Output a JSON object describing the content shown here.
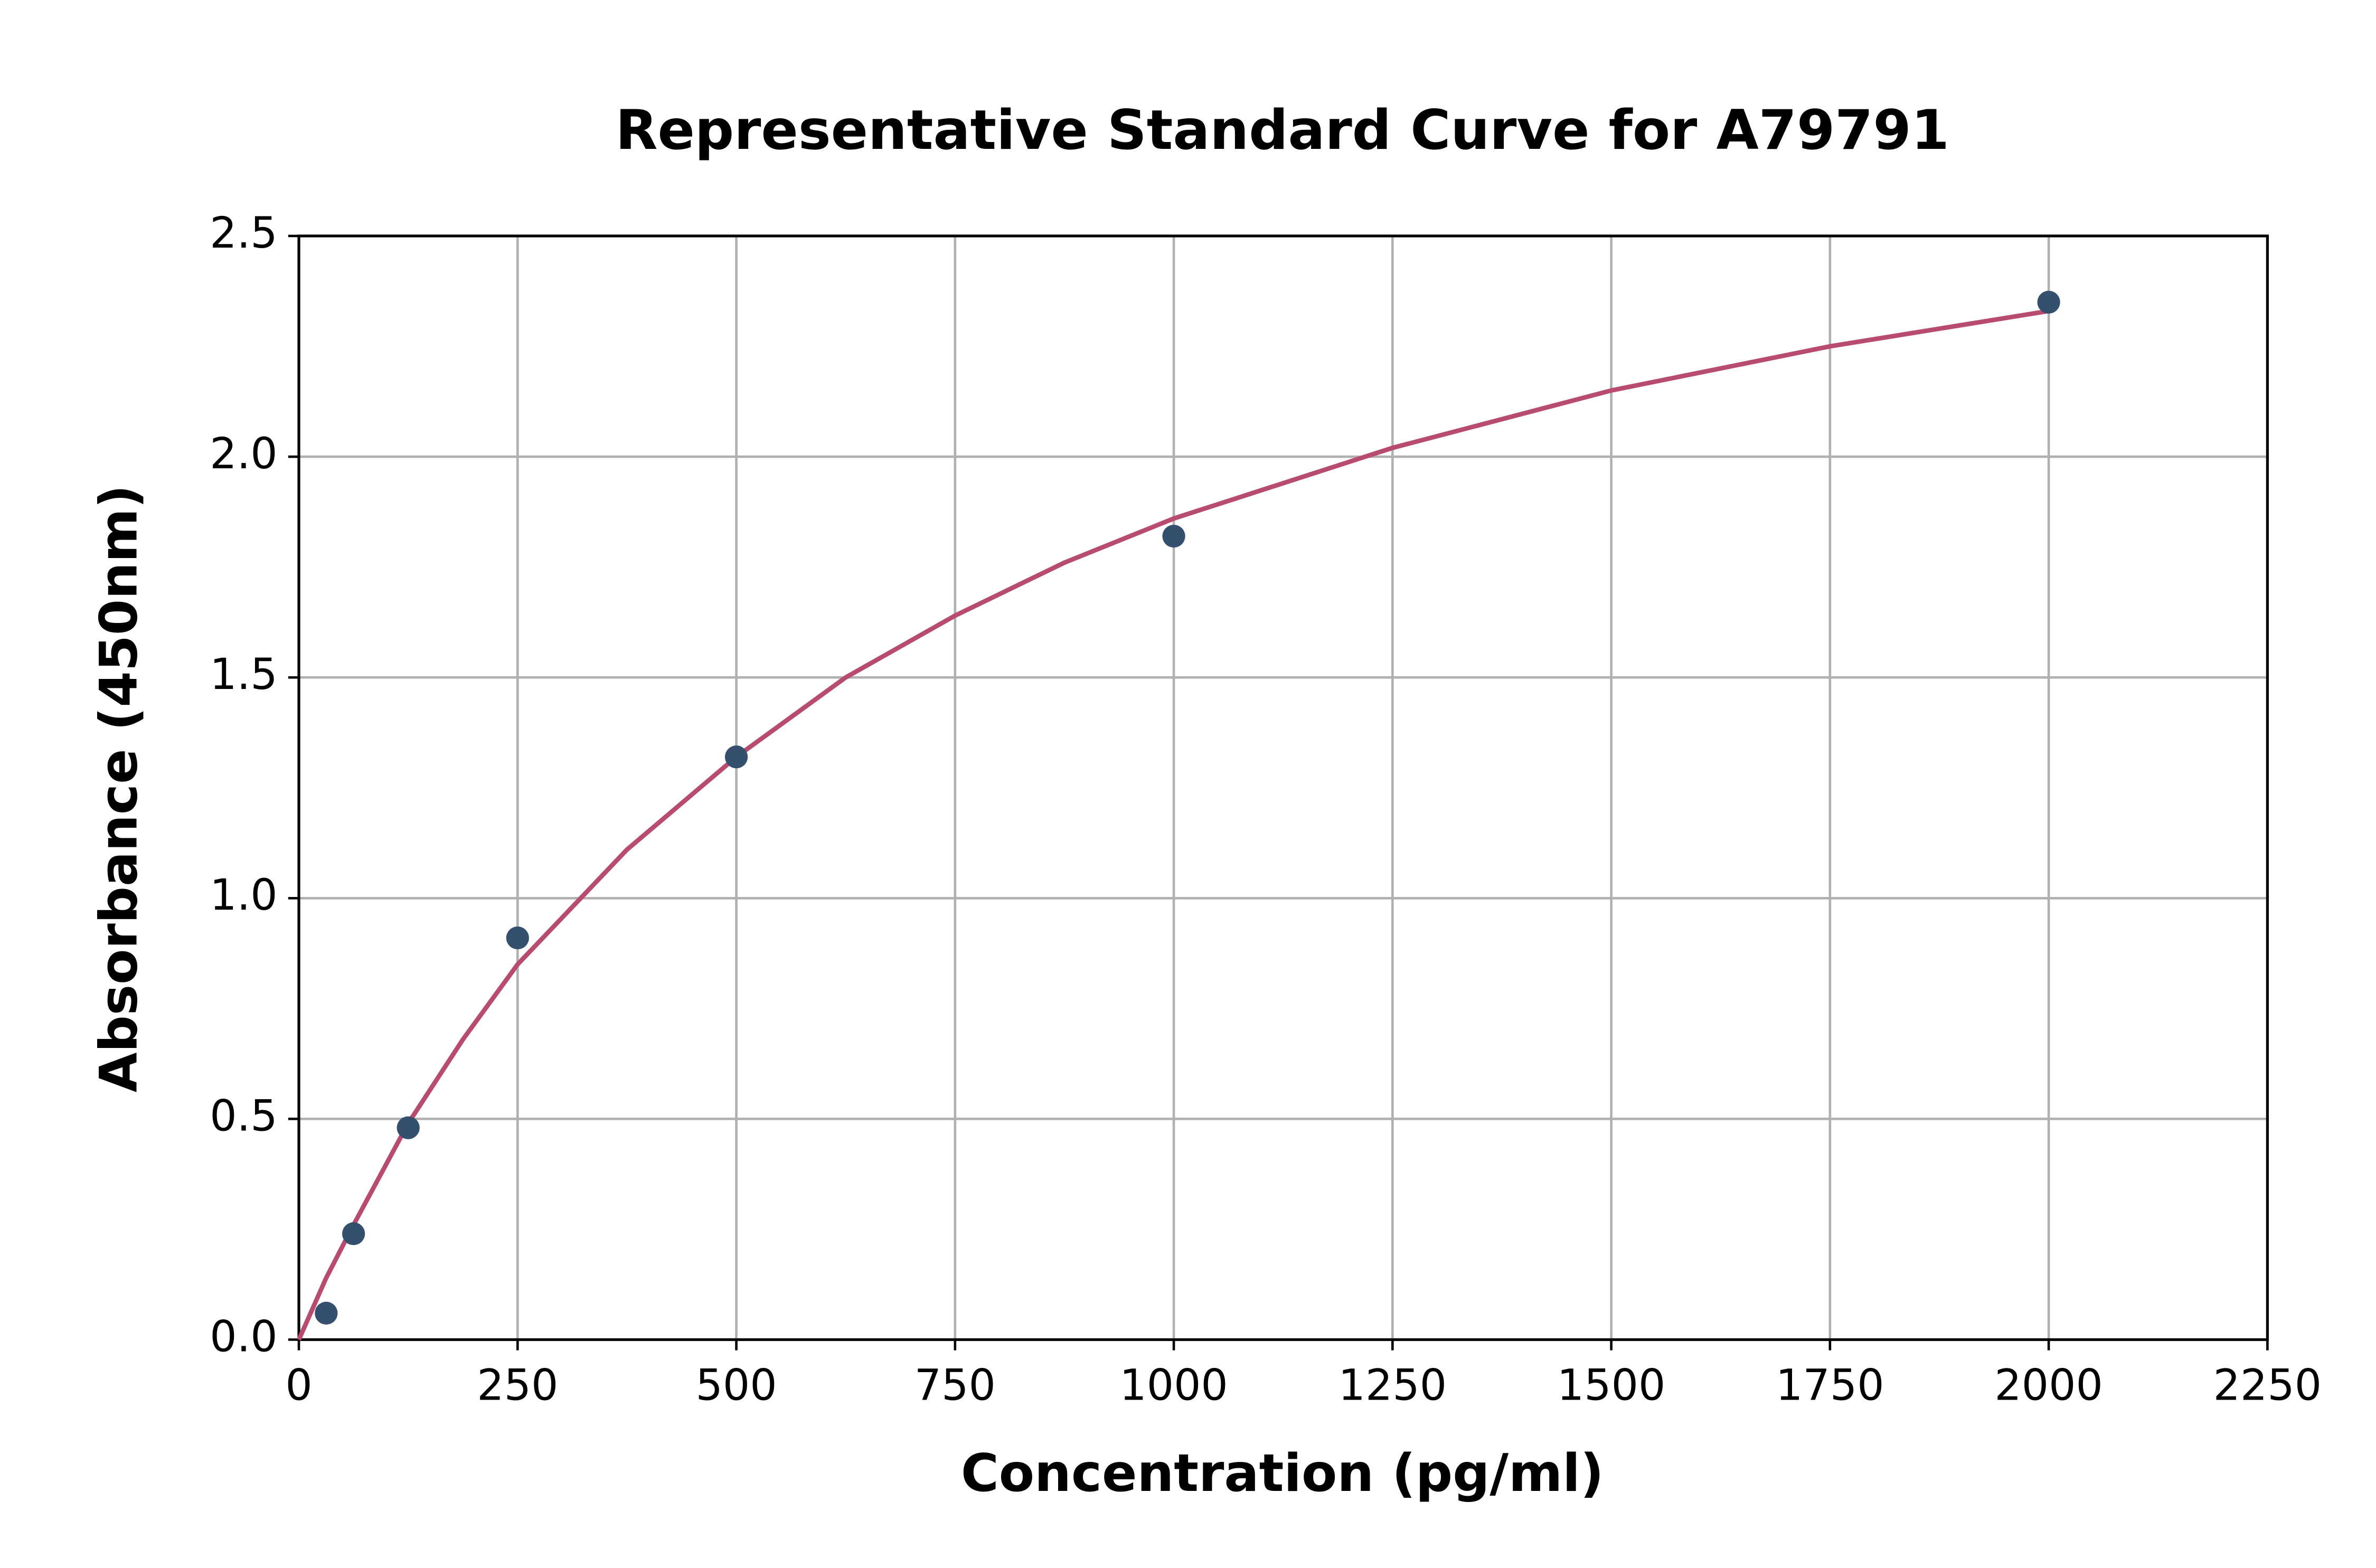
{
  "chart_data": {
    "type": "scatter",
    "title": "Representative Standard Curve for A79791",
    "xlabel": "Concentration (pg/ml)",
    "ylabel": "Absorbance (450nm)",
    "xlim": [
      0,
      2250
    ],
    "ylim": [
      0,
      2.5
    ],
    "xticks": [
      0,
      250,
      500,
      750,
      1000,
      1250,
      1500,
      1750,
      2000,
      2250
    ],
    "yticks": [
      {
        "value": 0,
        "label": "0.0"
      },
      0.5,
      {
        "value": 1,
        "label": "1.0"
      },
      1.5,
      {
        "value": 2,
        "label": "2.0"
      },
      2.5
    ],
    "grid": true,
    "series": [
      {
        "type": "scatter",
        "color": "#34506e",
        "x": [
          31.25,
          62.5,
          125,
          250,
          500,
          1000,
          2000
        ],
        "values": [
          0.06,
          0.24,
          0.48,
          0.91,
          1.32,
          1.82,
          2.35
        ]
      },
      {
        "type": "line",
        "color": "#b84c6e",
        "x": [
          0,
          31.25,
          62.5,
          125,
          187.5,
          250,
          375,
          500,
          625,
          750,
          875,
          1000,
          1250,
          1500,
          1750,
          2000
        ],
        "values": [
          0,
          0.14,
          0.26,
          0.49,
          0.68,
          0.85,
          1.11,
          1.32,
          1.5,
          1.64,
          1.76,
          1.86,
          2.02,
          2.15,
          2.25,
          2.33
        ]
      }
    ]
  }
}
